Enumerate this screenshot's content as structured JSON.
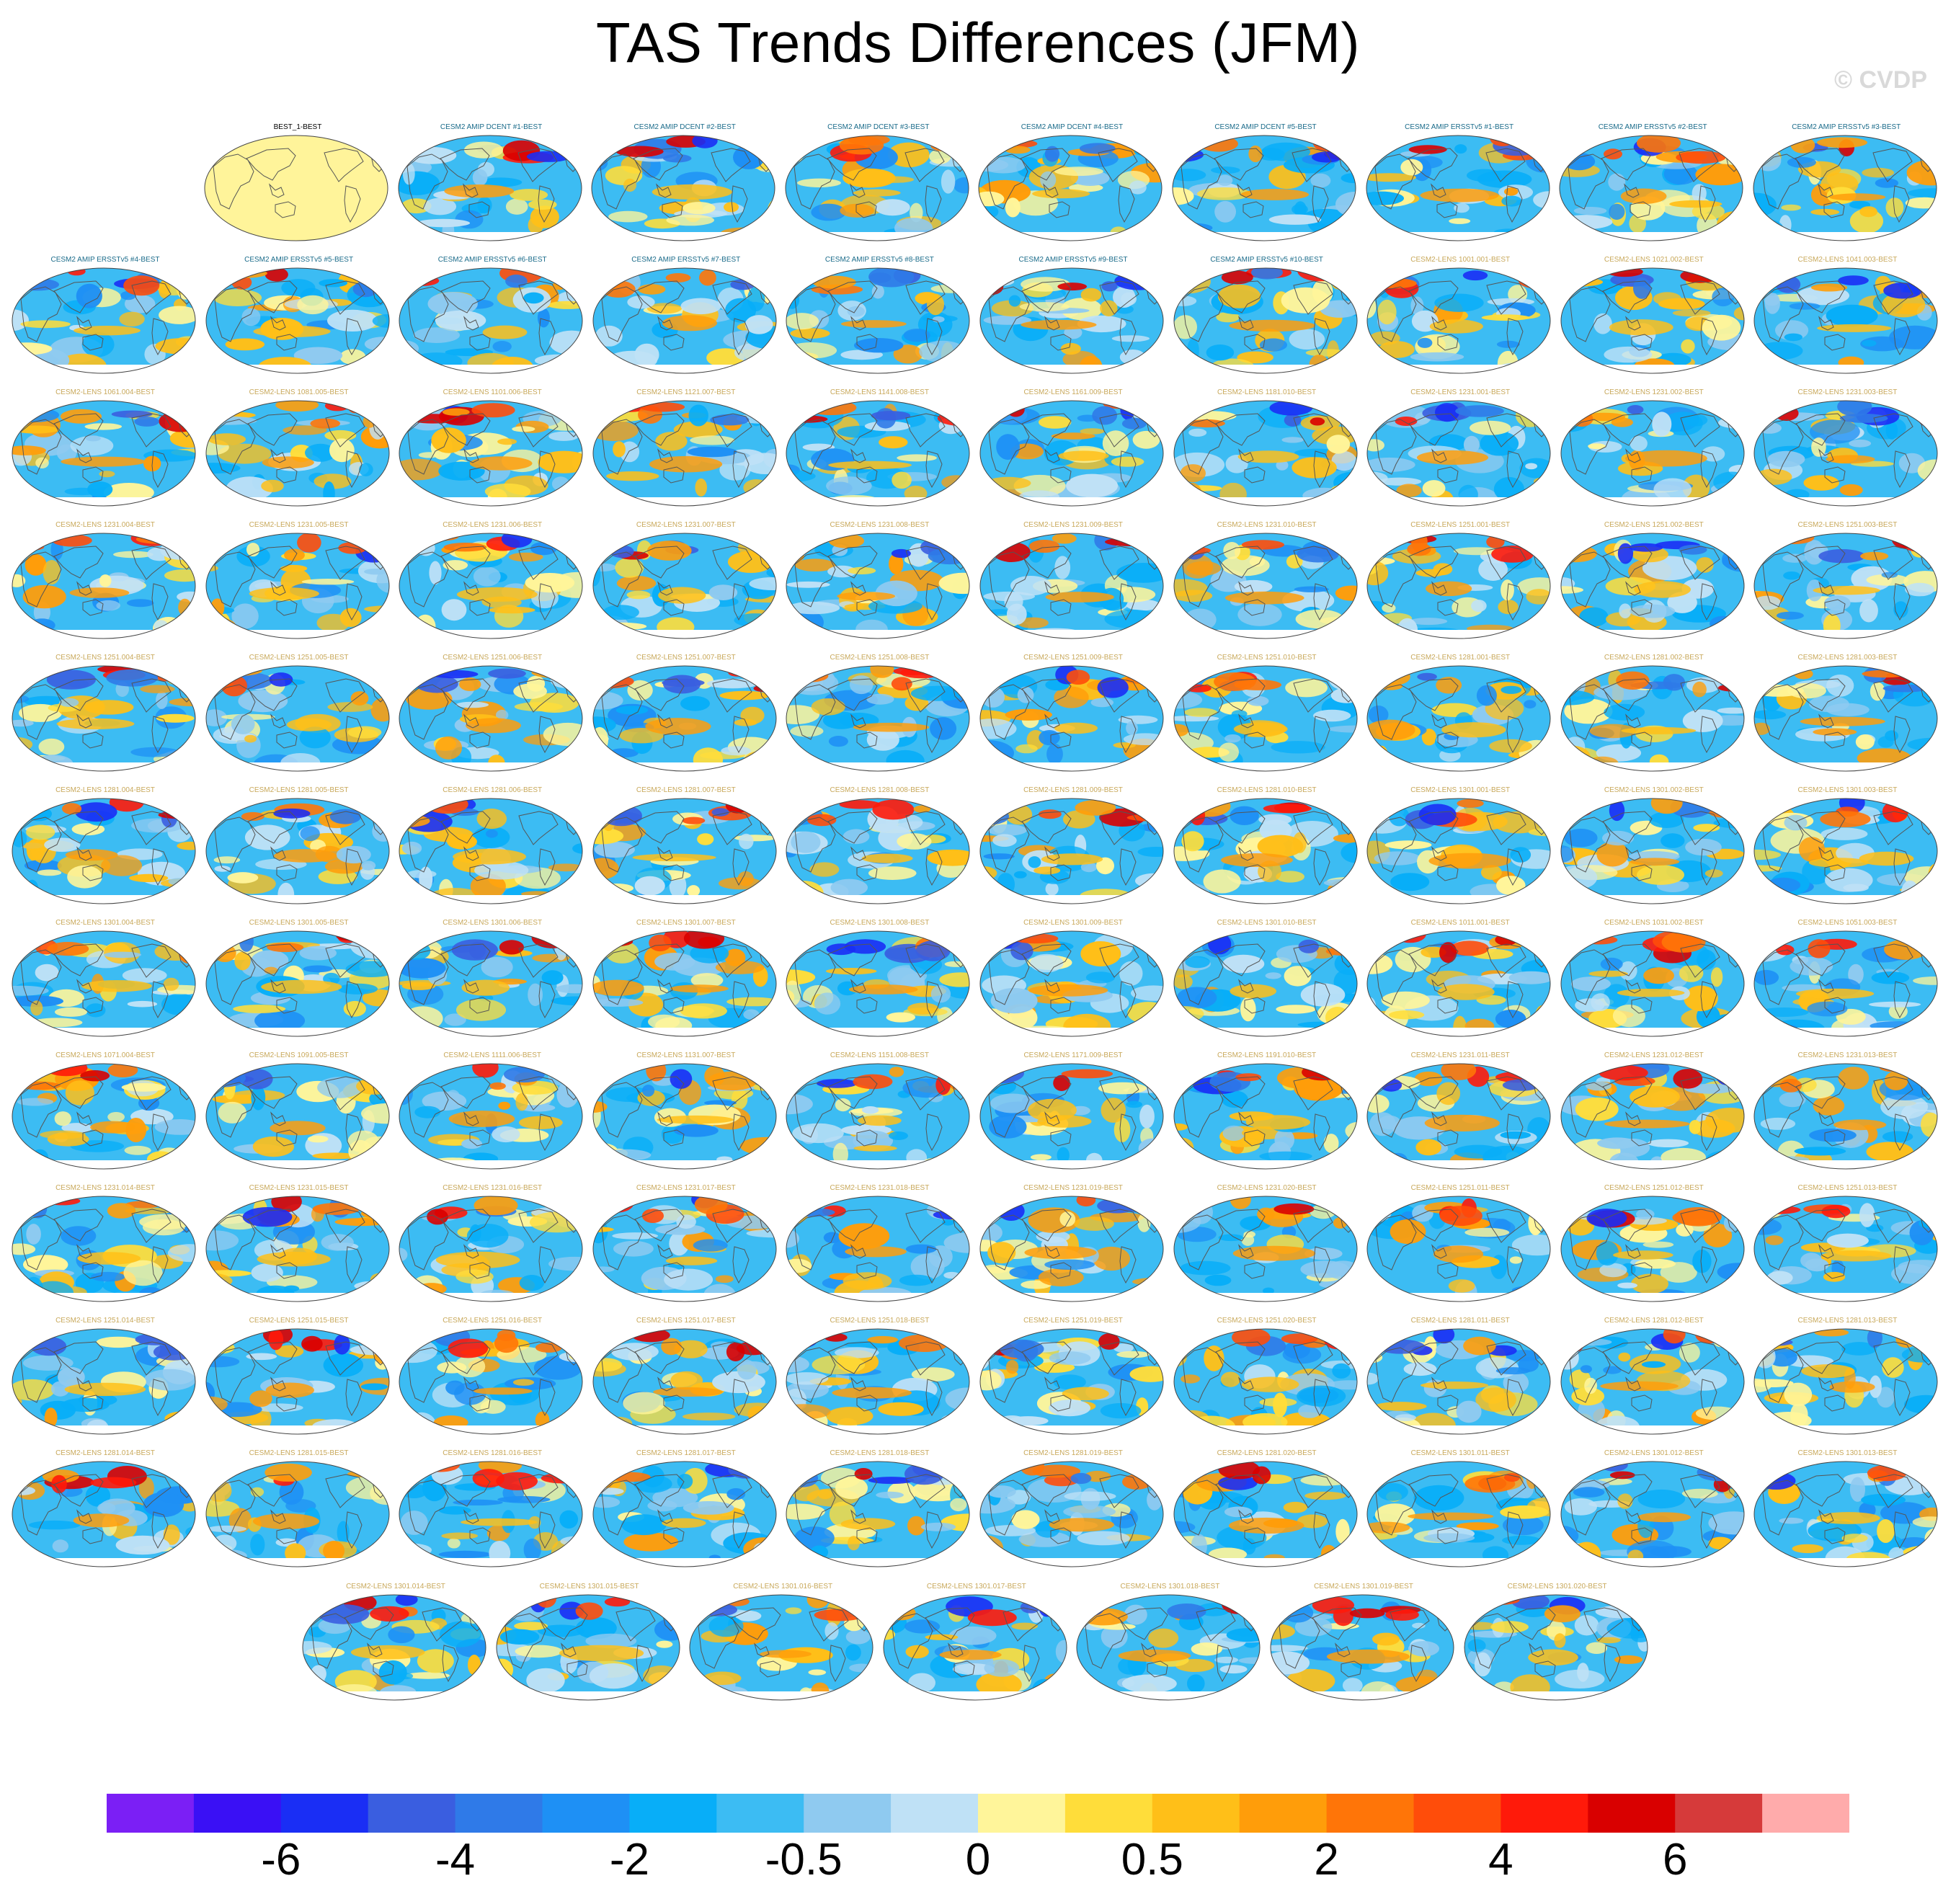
{
  "title": "TAS Trends Differences (JFM)",
  "copyright": "© CVDP",
  "colors": {
    "label_amip": "#1a6b8a",
    "label_lens": "#c8a85a",
    "label_base": "#000000",
    "coast": "#555555",
    "land_base": "#fff49a"
  },
  "panels": {
    "row1": [
      "BEST_1-BEST",
      "CESM2 AMIP DCENT #1-BEST",
      "CESM2 AMIP DCENT #2-BEST",
      "CESM2 AMIP DCENT #3-BEST",
      "CESM2 AMIP DCENT #4-BEST",
      "CESM2 AMIP DCENT #5-BEST",
      "CESM2 AMIP ERSSTv5 #1-BEST",
      "CESM2 AMIP ERSSTv5 #2-BEST",
      "CESM2 AMIP ERSSTv5 #3-BEST"
    ],
    "row2": [
      "CESM2 AMIP ERSSTv5 #4-BEST",
      "CESM2 AMIP ERSSTv5 #5-BEST",
      "CESM2 AMIP ERSSTv5 #6-BEST",
      "CESM2 AMIP ERSSTv5 #7-BEST",
      "CESM2 AMIP ERSSTv5 #8-BEST",
      "CESM2 AMIP ERSSTv5 #9-BEST",
      "CESM2 AMIP ERSSTv5 #10-BEST",
      "CESM2-LENS 1001.001-BEST",
      "CESM2-LENS 1021.002-BEST",
      "CESM2-LENS 1041.003-BEST"
    ],
    "row3": [
      "CESM2-LENS 1061.004-BEST",
      "CESM2-LENS 1081.005-BEST",
      "CESM2-LENS 1101.006-BEST",
      "CESM2-LENS 1121.007-BEST",
      "CESM2-LENS 1141.008-BEST",
      "CESM2-LENS 1161.009-BEST",
      "CESM2-LENS 1181.010-BEST",
      "CESM2-LENS 1231.001-BEST",
      "CESM2-LENS 1231.002-BEST",
      "CESM2-LENS 1231.003-BEST"
    ],
    "row4": [
      "CESM2-LENS 1231.004-BEST",
      "CESM2-LENS 1231.005-BEST",
      "CESM2-LENS 1231.006-BEST",
      "CESM2-LENS 1231.007-BEST",
      "CESM2-LENS 1231.008-BEST",
      "CESM2-LENS 1231.009-BEST",
      "CESM2-LENS 1231.010-BEST",
      "CESM2-LENS 1251.001-BEST",
      "CESM2-LENS 1251.002-BEST",
      "CESM2-LENS 1251.003-BEST"
    ],
    "row5": [
      "CESM2-LENS 1251.004-BEST",
      "CESM2-LENS 1251.005-BEST",
      "CESM2-LENS 1251.006-BEST",
      "CESM2-LENS 1251.007-BEST",
      "CESM2-LENS 1251.008-BEST",
      "CESM2-LENS 1251.009-BEST",
      "CESM2-LENS 1251.010-BEST",
      "CESM2-LENS 1281.001-BEST",
      "CESM2-LENS 1281.002-BEST",
      "CESM2-LENS 1281.003-BEST"
    ],
    "row6": [
      "CESM2-LENS 1281.004-BEST",
      "CESM2-LENS 1281.005-BEST",
      "CESM2-LENS 1281.006-BEST",
      "CESM2-LENS 1281.007-BEST",
      "CESM2-LENS 1281.008-BEST",
      "CESM2-LENS 1281.009-BEST",
      "CESM2-LENS 1281.010-BEST",
      "CESM2-LENS 1301.001-BEST",
      "CESM2-LENS 1301.002-BEST",
      "CESM2-LENS 1301.003-BEST"
    ],
    "row7": [
      "CESM2-LENS 1301.004-BEST",
      "CESM2-LENS 1301.005-BEST",
      "CESM2-LENS 1301.006-BEST",
      "CESM2-LENS 1301.007-BEST",
      "CESM2-LENS 1301.008-BEST",
      "CESM2-LENS 1301.009-BEST",
      "CESM2-LENS 1301.010-BEST",
      "CESM2-LENS 1011.001-BEST",
      "CESM2-LENS 1031.002-BEST",
      "CESM2-LENS 1051.003-BEST"
    ],
    "row8": [
      "CESM2-LENS 1071.004-BEST",
      "CESM2-LENS 1091.005-BEST",
      "CESM2-LENS 1111.006-BEST",
      "CESM2-LENS 1131.007-BEST",
      "CESM2-LENS 1151.008-BEST",
      "CESM2-LENS 1171.009-BEST",
      "CESM2-LENS 1191.010-BEST",
      "CESM2-LENS 1231.011-BEST",
      "CESM2-LENS 1231.012-BEST",
      "CESM2-LENS 1231.013-BEST"
    ],
    "row9": [
      "CESM2-LENS 1231.014-BEST",
      "CESM2-LENS 1231.015-BEST",
      "CESM2-LENS 1231.016-BEST",
      "CESM2-LENS 1231.017-BEST",
      "CESM2-LENS 1231.018-BEST",
      "CESM2-LENS 1231.019-BEST",
      "CESM2-LENS 1231.020-BEST",
      "CESM2-LENS 1251.011-BEST",
      "CESM2-LENS 1251.012-BEST",
      "CESM2-LENS 1251.013-BEST"
    ],
    "row10": [
      "CESM2-LENS 1251.014-BEST",
      "CESM2-LENS 1251.015-BEST",
      "CESM2-LENS 1251.016-BEST",
      "CESM2-LENS 1251.017-BEST",
      "CESM2-LENS 1251.018-BEST",
      "CESM2-LENS 1251.019-BEST",
      "CESM2-LENS 1251.020-BEST",
      "CESM2-LENS 1281.011-BEST",
      "CESM2-LENS 1281.012-BEST",
      "CESM2-LENS 1281.013-BEST"
    ],
    "row11": [
      "CESM2-LENS 1281.014-BEST",
      "CESM2-LENS 1281.015-BEST",
      "CESM2-LENS 1281.016-BEST",
      "CESM2-LENS 1281.017-BEST",
      "CESM2-LENS 1281.018-BEST",
      "CESM2-LENS 1281.019-BEST",
      "CESM2-LENS 1281.020-BEST",
      "CESM2-LENS 1301.011-BEST",
      "CESM2-LENS 1301.012-BEST",
      "CESM2-LENS 1301.013-BEST"
    ],
    "row12": [
      "CESM2-LENS 1301.014-BEST",
      "CESM2-LENS 1301.015-BEST",
      "CESM2-LENS 1301.016-BEST",
      "CESM2-LENS 1301.017-BEST",
      "CESM2-LENS 1301.018-BEST",
      "CESM2-LENS 1301.019-BEST",
      "CESM2-LENS 1301.020-BEST"
    ]
  },
  "colorbar": {
    "colors": [
      "#7b1ff5",
      "#3a10f5",
      "#1a2ef5",
      "#3a5ee0",
      "#2f7ae8",
      "#1e90f5",
      "#08aef8",
      "#3cbcf3",
      "#8fcaf0",
      "#bfe1f6",
      "#fff59a",
      "#ffdd3a",
      "#ffbf18",
      "#ff9d0a",
      "#ff7508",
      "#ff4d0a",
      "#ff1a0a",
      "#d90000",
      "#d63a3a",
      "#ffabab"
    ],
    "tick_labels": [
      "-6",
      "-4",
      "-2",
      "-0.5",
      "0",
      "0.5",
      "2",
      "4",
      "6"
    ]
  }
}
